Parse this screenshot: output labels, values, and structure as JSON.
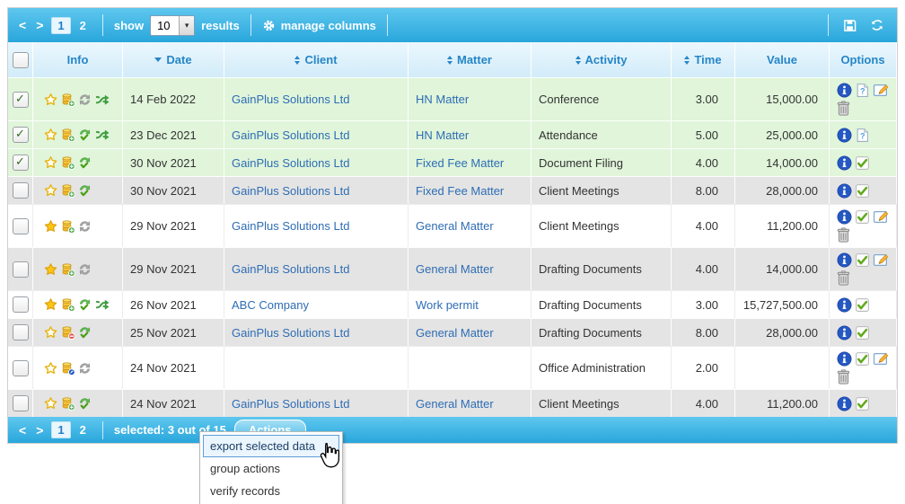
{
  "colors": {
    "toolbar_blue_top": "#5ec7ee",
    "toolbar_blue_bottom": "#29a6dc",
    "header_text_blue": "#2586c7",
    "selected_row_green": "#e0f5da",
    "alt_row_gray": "#e4e4e4",
    "link_blue": "#2e6db4",
    "menu_highlight_border": "#5f9fd6",
    "menu_highlight_bg": "#eaf5fd"
  },
  "top_toolbar": {
    "prev_label": "<",
    "next_label": ">",
    "pages": [
      "1",
      "2"
    ],
    "active_page": "1",
    "show_label": "show",
    "page_size_value": "10",
    "results_label": "results",
    "manage_columns_label": "manage columns"
  },
  "table": {
    "columns": [
      {
        "key": "select",
        "label": "",
        "sort": "none"
      },
      {
        "key": "info",
        "label": "Info",
        "sort": "none"
      },
      {
        "key": "date",
        "label": "Date",
        "sort": "desc"
      },
      {
        "key": "client",
        "label": "Client",
        "sort": "both"
      },
      {
        "key": "matter",
        "label": "Matter",
        "sort": "both"
      },
      {
        "key": "activity",
        "label": "Activity",
        "sort": "both"
      },
      {
        "key": "time",
        "label": "Time",
        "sort": "both"
      },
      {
        "key": "value",
        "label": "Value",
        "sort": "none"
      },
      {
        "key": "options",
        "label": "Options",
        "sort": "none"
      }
    ],
    "rows": [
      {
        "checked": true,
        "bg": "green",
        "info_icons": [
          "star-outline",
          "coins-add",
          "sync-gray",
          "transfer"
        ],
        "date": "14 Feb 2022",
        "client": "GainPlus Solutions Ltd",
        "matter": "HN Matter",
        "activity": "Conference",
        "time": "3.00",
        "value": "15,000.00",
        "option_icons": [
          "info",
          "preview",
          "edit",
          "delete"
        ]
      },
      {
        "checked": true,
        "bg": "green",
        "info_icons": [
          "star-outline",
          "coins-add",
          "sync-verified",
          "transfer"
        ],
        "date": "23 Dec 2021",
        "client": "GainPlus Solutions Ltd",
        "matter": "HN Matter",
        "activity": "Attendance",
        "time": "5.00",
        "value": "25,000.00",
        "option_icons": [
          "info",
          "preview"
        ]
      },
      {
        "checked": true,
        "bg": "green",
        "info_icons": [
          "star-outline",
          "coins-add",
          "sync-verified"
        ],
        "date": "30 Nov 2021",
        "client": "GainPlus Solutions Ltd",
        "matter": "Fixed Fee Matter",
        "activity": "Document Filing",
        "time": "4.00",
        "value": "14,000.00",
        "option_icons": [
          "info",
          "verify"
        ]
      },
      {
        "checked": false,
        "bg": "gray",
        "info_icons": [
          "star-outline",
          "coins-add",
          "sync-verified"
        ],
        "date": "30 Nov 2021",
        "client": "GainPlus Solutions Ltd",
        "matter": "Fixed Fee Matter",
        "activity": "Client Meetings",
        "time": "8.00",
        "value": "28,000.00",
        "option_icons": [
          "info",
          "verify"
        ]
      },
      {
        "checked": false,
        "bg": "white",
        "info_icons": [
          "star-filled",
          "coins-add",
          "sync-gray"
        ],
        "date": "29 Nov 2021",
        "client": "GainPlus Solutions Ltd",
        "matter": "General Matter",
        "activity": "Client Meetings",
        "time": "4.00",
        "value": "11,200.00",
        "option_icons": [
          "info",
          "verify",
          "edit",
          "delete"
        ]
      },
      {
        "checked": false,
        "bg": "gray",
        "info_icons": [
          "star-filled",
          "coins-add",
          "sync-gray"
        ],
        "date": "29 Nov 2021",
        "client": "GainPlus Solutions Ltd",
        "matter": "General Matter",
        "activity": "Drafting Documents",
        "time": "4.00",
        "value": "14,000.00",
        "option_icons": [
          "info",
          "verify",
          "edit",
          "delete"
        ]
      },
      {
        "checked": false,
        "bg": "white",
        "info_icons": [
          "star-filled",
          "coins-add",
          "sync-verified",
          "transfer"
        ],
        "date": "26 Nov 2021",
        "client": "ABC Company",
        "matter": "Work permit",
        "activity": "Drafting Documents",
        "time": "3.00",
        "value": "15,727,500.00",
        "option_icons": [
          "info",
          "verify"
        ]
      },
      {
        "checked": false,
        "bg": "gray",
        "info_icons": [
          "star-outline",
          "coins-remove",
          "sync-verified"
        ],
        "date": "25 Nov 2021",
        "client": "GainPlus Solutions Ltd",
        "matter": "General Matter",
        "activity": "Drafting Documents",
        "time": "8.00",
        "value": "28,000.00",
        "option_icons": [
          "info",
          "verify"
        ]
      },
      {
        "checked": false,
        "bg": "white",
        "info_icons": [
          "star-outline",
          "coins-edit",
          "sync-gray"
        ],
        "date": "24 Nov 2021",
        "client": "",
        "matter": "",
        "activity": "Office Administration",
        "time": "2.00",
        "value": "",
        "option_icons": [
          "info",
          "verify",
          "edit",
          "delete"
        ]
      },
      {
        "checked": false,
        "bg": "gray",
        "info_icons": [
          "star-outline",
          "coins-add",
          "sync-verified"
        ],
        "date": "24 Nov 2021",
        "client": "GainPlus Solutions Ltd",
        "matter": "General Matter",
        "activity": "Client Meetings",
        "time": "4.00",
        "value": "11,200.00",
        "option_icons": [
          "info",
          "verify"
        ]
      }
    ]
  },
  "footer_toolbar": {
    "prev_label": "<",
    "next_label": ">",
    "pages": [
      "1",
      "2"
    ],
    "active_page": "1",
    "selected_label": "selected: 3 out of 15",
    "actions_label": "Actions"
  },
  "actions_menu": {
    "items": [
      {
        "label": "export selected data",
        "highlighted": true
      },
      {
        "label": "group actions",
        "highlighted": false
      },
      {
        "label": "verify records",
        "highlighted": false
      }
    ]
  }
}
